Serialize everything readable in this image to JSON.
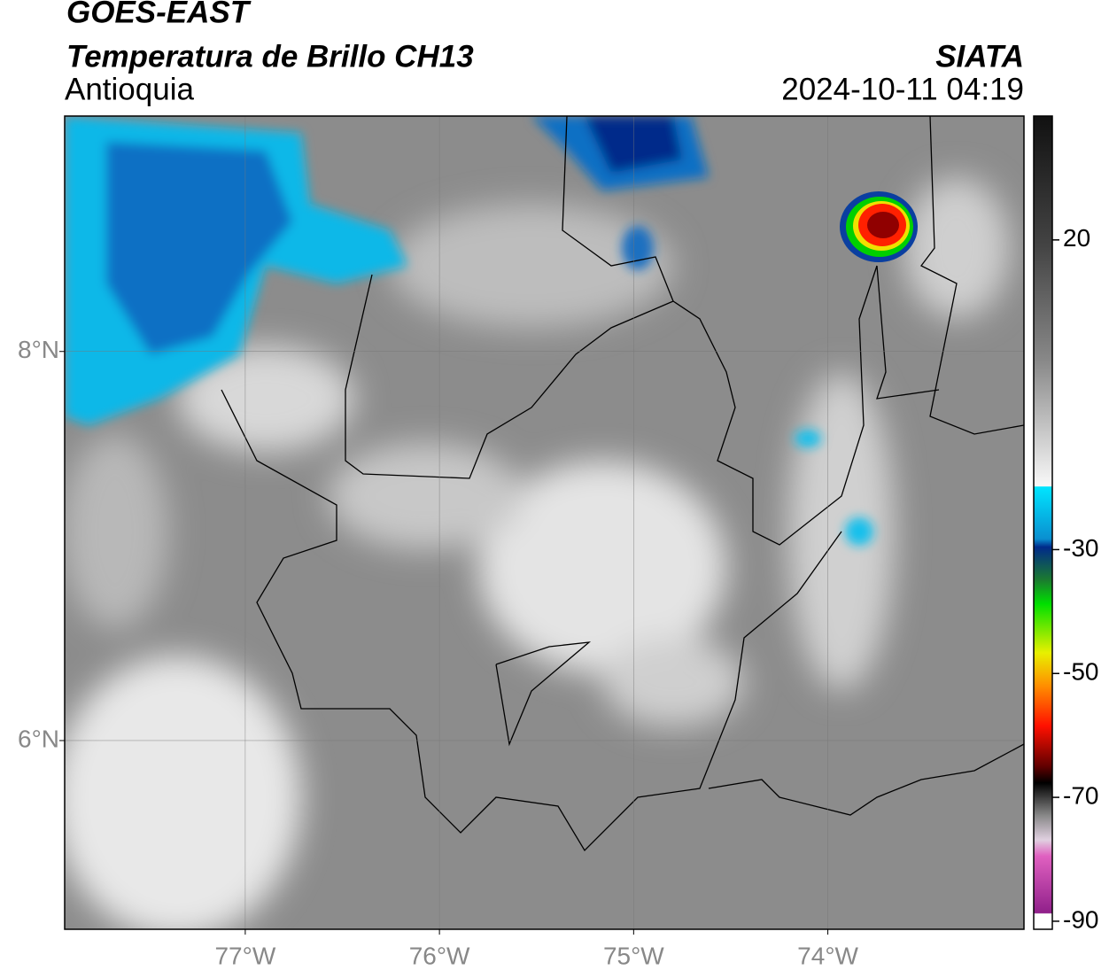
{
  "header": {
    "title": "GOES-EAST",
    "subtitle": "Temperatura de Brillo CH13",
    "source": "SIATA",
    "region": "Antioquia",
    "datetime": "2024-10-11 04:19"
  },
  "map": {
    "xlim": [
      -77.93,
      -72.99
    ],
    "ylim": [
      5.03,
      9.21
    ],
    "xticks": [
      {
        "value": -77,
        "label": "77°W"
      },
      {
        "value": -76,
        "label": "76°W"
      },
      {
        "value": -75,
        "label": "75°W"
      },
      {
        "value": -74,
        "label": "74°W"
      }
    ],
    "yticks": [
      {
        "value": 6,
        "label": "6°N"
      },
      {
        "value": 8,
        "label": "8°N"
      }
    ],
    "grid": true
  },
  "colorbar": {
    "lim": [
      -91.3,
      40
    ],
    "ticks": [
      20,
      -30,
      -50,
      -70,
      -90
    ]
  }
}
